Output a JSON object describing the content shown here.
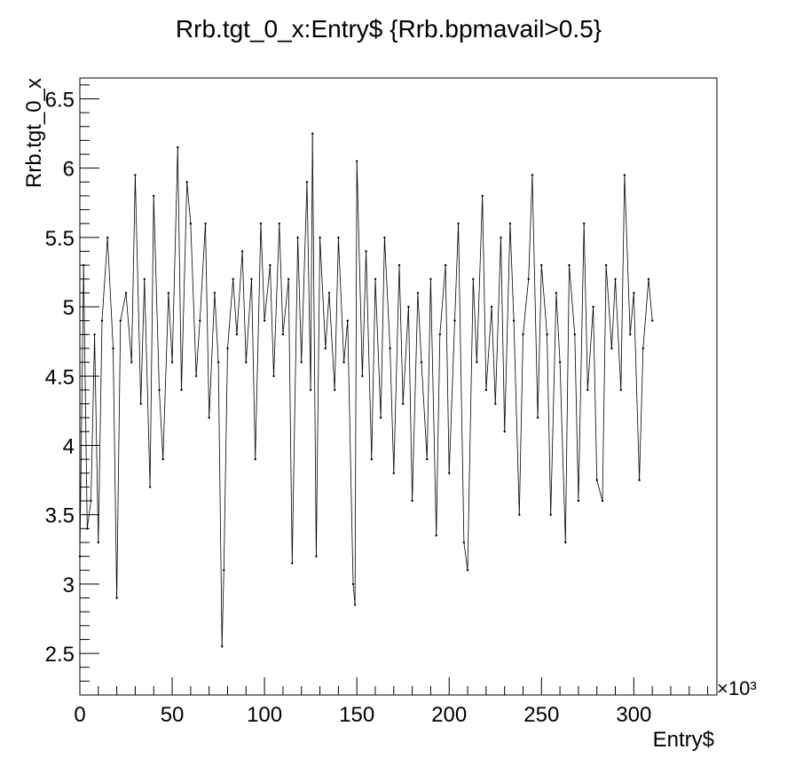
{
  "chart_data": {
    "type": "scatter",
    "title": "Rrb.tgt_0_x:Entry$ {Rrb.bpmavail>0.5}",
    "xlabel": "Entry$",
    "ylabel": "Rrb.tgt_0_x",
    "x_exponent_label": "×10³",
    "xlim": [
      0,
      345
    ],
    "ylim": [
      2.2,
      6.65
    ],
    "x_ticks": [
      0,
      50,
      100,
      150,
      200,
      250,
      300
    ],
    "x_tick_labels": [
      "0",
      "50",
      "100",
      "150",
      "200",
      "250",
      "300"
    ],
    "y_ticks": [
      2.5,
      3,
      3.5,
      4,
      4.5,
      5,
      5.5,
      6,
      6.5
    ],
    "y_tick_labels": [
      "2.5",
      "3",
      "3.5",
      "4",
      "4.5",
      "5",
      "5.5",
      "6",
      "6.5"
    ],
    "grid": false,
    "legend": "none",
    "marker_color": "#000000",
    "series": [
      {
        "x": [
          0,
          2,
          4,
          6,
          8,
          10,
          12,
          15,
          18,
          20,
          22,
          25,
          28,
          30,
          33,
          35,
          38,
          40,
          43,
          45,
          48,
          50,
          53,
          55,
          58,
          60,
          63,
          65,
          68,
          70,
          73,
          75,
          77,
          78,
          80,
          83,
          85,
          88,
          90,
          93,
          95,
          98,
          100,
          103,
          105,
          108,
          110,
          113,
          115,
          118,
          120,
          123,
          125,
          126,
          128,
          130,
          133,
          135,
          138,
          140,
          143,
          145,
          148,
          149,
          150,
          153,
          155,
          158,
          160,
          163,
          165,
          168,
          170,
          173,
          175,
          178,
          180,
          183,
          185,
          188,
          190,
          193,
          195,
          198,
          200,
          203,
          205,
          208,
          210,
          213,
          215,
          218,
          220,
          223,
          225,
          228,
          230,
          233,
          235,
          238,
          240,
          243,
          245,
          248,
          250,
          253,
          255,
          258,
          260,
          263,
          265,
          268,
          270,
          273,
          275,
          278,
          280,
          283,
          285,
          288,
          290,
          293,
          295,
          298,
          300,
          303,
          305,
          308,
          310
        ],
        "y": [
          3.2,
          5.3,
          3.4,
          3.6,
          4.8,
          3.3,
          4.9,
          5.5,
          4.7,
          2.9,
          4.9,
          5.1,
          4.6,
          5.95,
          4.3,
          5.2,
          3.7,
          5.8,
          4.4,
          3.9,
          5.1,
          4.6,
          6.15,
          4.4,
          5.9,
          5.6,
          4.5,
          4.9,
          5.6,
          4.2,
          5.1,
          4.6,
          2.55,
          3.1,
          4.7,
          5.2,
          4.8,
          5.4,
          4.6,
          5.2,
          3.9,
          5.6,
          4.9,
          5.3,
          4.5,
          5.6,
          4.8,
          5.2,
          3.15,
          5.5,
          4.6,
          5.9,
          4.4,
          6.25,
          3.2,
          5.5,
          4.7,
          5.1,
          4.4,
          5.5,
          4.6,
          4.9,
          3.0,
          2.85,
          6.05,
          4.5,
          5.4,
          3.9,
          5.2,
          4.2,
          5.5,
          4.7,
          3.8,
          5.3,
          4.3,
          5.0,
          3.6,
          5.1,
          4.6,
          3.9,
          5.2,
          3.35,
          4.8,
          5.3,
          3.8,
          4.9,
          5.6,
          3.3,
          3.1,
          5.2,
          4.6,
          5.8,
          4.4,
          5.0,
          4.3,
          5.5,
          4.1,
          5.6,
          4.9,
          3.5,
          4.8,
          5.2,
          5.95,
          4.2,
          5.3,
          4.8,
          3.5,
          5.1,
          4.6,
          3.3,
          5.3,
          4.8,
          3.6,
          5.6,
          4.4,
          5.0,
          3.75,
          3.6,
          5.3,
          4.7,
          5.2,
          4.4,
          5.95,
          4.8,
          5.1,
          3.75,
          4.7,
          5.2,
          4.9
        ]
      }
    ]
  }
}
